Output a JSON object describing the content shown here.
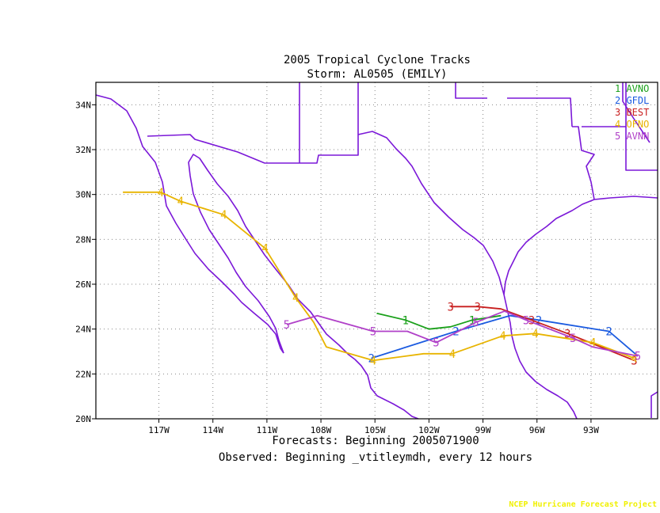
{
  "title": {
    "line1": "2005 Tropical Cyclone Tracks",
    "line2": "Storm: AL0505 (EMILY)"
  },
  "footer": {
    "forecast_line": "Forecasts: Beginning 2005071900",
    "observed_line": "Observed: Beginning _vtitleymdh, every 12 hours",
    "credit": "NCEP Hurricane Forecast Project"
  },
  "colors": {
    "background": "#ffffff",
    "frame": "#000000",
    "coastline": "#7b18d8",
    "grid": "#888888",
    "credit": "#f0f000"
  },
  "map": {
    "lon_range": [
      -120.5,
      -89.3
    ],
    "lat_range": [
      20,
      35
    ],
    "lon_ticks": [
      -117,
      -114,
      -111,
      -108,
      -105,
      -102,
      -99,
      -96,
      -93
    ],
    "lon_tick_labels": [
      "117W",
      "114W",
      "111W",
      "108W",
      "105W",
      "102W",
      "99W",
      "96W",
      "93W"
    ],
    "lat_ticks": [
      20,
      22,
      24,
      26,
      28,
      30,
      32,
      34
    ],
    "lat_tick_labels": [
      "20N",
      "22N",
      "24N",
      "26N",
      "28N",
      "30N",
      "32N",
      "34N"
    ],
    "grid": true,
    "legend_position": "top-right"
  },
  "legend": [
    {
      "num": "1",
      "label": "AVNO",
      "color": "#1aa01a"
    },
    {
      "num": "2",
      "label": "GFDL",
      "color": "#1a5ae0"
    },
    {
      "num": "3",
      "label": "BEST",
      "color": "#c81e1e"
    },
    {
      "num": "4",
      "label": "OFNO",
      "color": "#e8b400"
    },
    {
      "num": "5",
      "label": "AVNN",
      "color": "#b040c8"
    }
  ],
  "chart_data": {
    "type": "line",
    "xlabel": "",
    "ylabel": "",
    "series": [
      {
        "name": "AVNO",
        "marker": "1",
        "color": "#1aa01a",
        "points": [
          [
            -104.9,
            24.7
          ],
          [
            -103.3,
            24.4
          ],
          [
            -102.0,
            24.0
          ],
          [
            -100.8,
            24.1
          ],
          [
            -99.6,
            24.4
          ],
          [
            -98.0,
            24.6
          ]
        ],
        "labels": [
          [
            -103.3,
            24.4
          ],
          [
            -99.6,
            24.4
          ]
        ]
      },
      {
        "name": "GFDL",
        "marker": "2",
        "color": "#1a5ae0",
        "points": [
          [
            -90.4,
            22.8
          ],
          [
            -92.0,
            23.9
          ],
          [
            -95.9,
            24.4
          ],
          [
            -97.5,
            24.6
          ],
          [
            -100.5,
            23.9
          ],
          [
            -105.2,
            22.7
          ]
        ],
        "labels": [
          [
            -92.0,
            23.9
          ],
          [
            -95.9,
            24.4
          ],
          [
            -100.5,
            23.9
          ],
          [
            -105.2,
            22.7
          ]
        ]
      },
      {
        "name": "BEST",
        "marker": "3",
        "color": "#c81e1e",
        "points": [
          [
            -100.8,
            25.0
          ],
          [
            -99.3,
            25.0
          ],
          [
            -98.0,
            24.9
          ],
          [
            -96.3,
            24.4
          ],
          [
            -94.3,
            23.8
          ],
          [
            -90.6,
            22.6
          ]
        ],
        "labels": [
          [
            -100.8,
            25.0
          ],
          [
            -99.3,
            25.0
          ],
          [
            -96.3,
            24.4
          ],
          [
            -94.3,
            23.8
          ],
          [
            -90.6,
            22.6
          ]
        ]
      },
      {
        "name": "OFNO",
        "marker": "4",
        "color": "#e8b400",
        "points": [
          [
            -119.0,
            30.1
          ],
          [
            -116.9,
            30.1
          ],
          [
            -115.8,
            29.7
          ],
          [
            -113.4,
            29.1
          ],
          [
            -111.1,
            27.6
          ],
          [
            -109.4,
            25.4
          ],
          [
            -108.4,
            24.3
          ],
          [
            -107.7,
            23.2
          ],
          [
            -105.1,
            22.6
          ],
          [
            -102.3,
            22.9
          ],
          [
            -100.7,
            22.9
          ],
          [
            -97.9,
            23.7
          ],
          [
            -96.1,
            23.8
          ],
          [
            -92.9,
            23.4
          ],
          [
            -90.6,
            22.7
          ]
        ],
        "labels": [
          [
            -116.9,
            30.1
          ],
          [
            -115.8,
            29.7
          ],
          [
            -113.4,
            29.1
          ],
          [
            -111.1,
            27.6
          ],
          [
            -109.4,
            25.4
          ],
          [
            -105.1,
            22.6
          ],
          [
            -100.7,
            22.9
          ],
          [
            -97.9,
            23.7
          ],
          [
            -96.1,
            23.8
          ],
          [
            -92.9,
            23.4
          ],
          [
            -90.6,
            22.7
          ]
        ]
      },
      {
        "name": "AVNN",
        "marker": "5",
        "color": "#b040c8",
        "points": [
          [
            -109.9,
            24.2
          ],
          [
            -108.2,
            24.6
          ],
          [
            -106.0,
            24.1
          ],
          [
            -105.1,
            23.9
          ],
          [
            -103.2,
            23.9
          ],
          [
            -101.6,
            23.4
          ],
          [
            -100.6,
            23.8
          ],
          [
            -99.4,
            24.3
          ],
          [
            -97.8,
            24.8
          ],
          [
            -96.6,
            24.4
          ],
          [
            -94.0,
            23.6
          ],
          [
            -92.9,
            23.2
          ],
          [
            -90.4,
            22.8
          ]
        ],
        "labels": [
          [
            -109.9,
            24.2
          ],
          [
            -105.1,
            23.9
          ],
          [
            -101.6,
            23.4
          ],
          [
            -99.4,
            24.3
          ],
          [
            -96.6,
            24.4
          ],
          [
            -94.0,
            23.6
          ],
          [
            -90.4,
            22.8
          ]
        ]
      }
    ]
  }
}
